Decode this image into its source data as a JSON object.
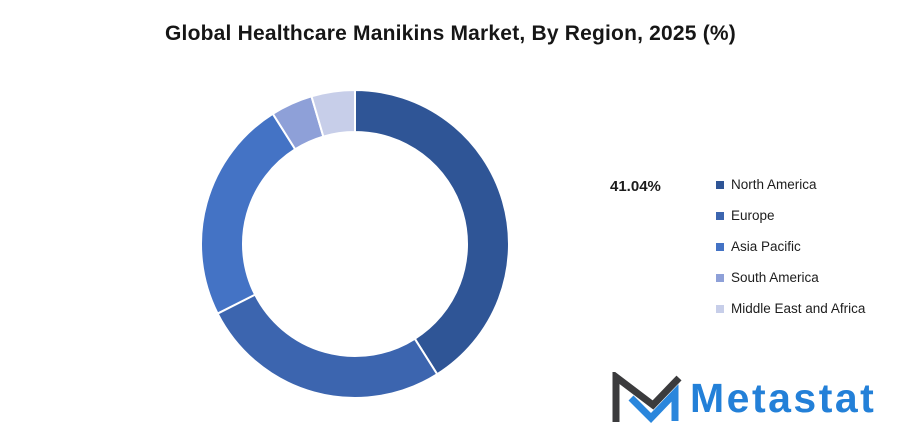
{
  "title": "Global Healthcare Manikins Market, By Region, 2025 (%)",
  "chart_data": {
    "type": "pie",
    "subtype": "donut",
    "title": "Global Healthcare Manikins Market, By Region, 2025 (%)",
    "categories": [
      "North America",
      "Europe",
      "Asia Pacific",
      "South America",
      "Middle East and Africa"
    ],
    "values": [
      41.04,
      26.5,
      23.5,
      4.4,
      4.56
    ],
    "values_note": "Only North America (41.04%) is labeled in the image; other shares estimated from arc angles",
    "colors": [
      "#2F5596",
      "#3C65AF",
      "#4473C5",
      "#8EA0D8",
      "#C7CEE9"
    ],
    "start_angle_deg": 0,
    "hole_ratio": 0.73,
    "segment_gap_color": "#FFFFFF",
    "legend_position": "right",
    "data_label": {
      "series": "North America",
      "text": "41.04%"
    }
  },
  "legend": {
    "items": [
      {
        "label": "North America",
        "color": "#2F5596"
      },
      {
        "label": "Europe",
        "color": "#3C65AF"
      },
      {
        "label": "Asia Pacific",
        "color": "#4473C5"
      },
      {
        "label": "South America",
        "color": "#8EA0D8"
      },
      {
        "label": "Middle East and Africa",
        "color": "#C7CEE9"
      }
    ]
  },
  "branding": {
    "logo_text": "Metastat",
    "mark_dark": "#3B3B3D",
    "mark_blue": "#2A86DC",
    "text_color": "#2380D8"
  }
}
